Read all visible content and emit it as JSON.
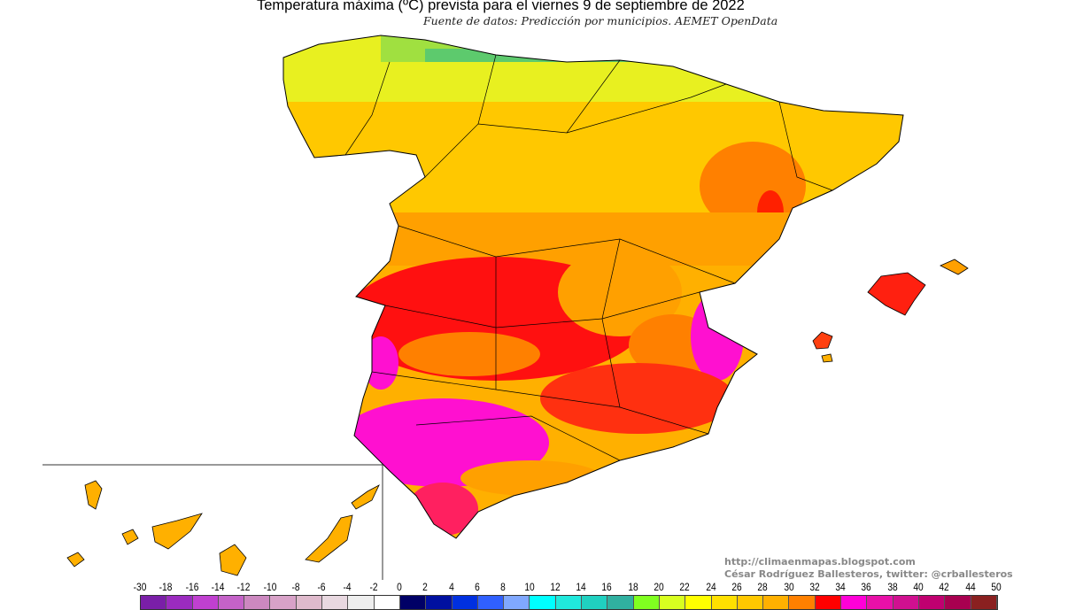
{
  "header": {
    "title": "Temperatura máxima (ºC) prevista para el viernes 9 de septiembre de 2022",
    "subtitle": "Fuente de datos: Predicción por municipios. AEMET OpenData"
  },
  "credits": {
    "url": "http://climaenmapas.blogspot.com",
    "author": "César Rodríguez Ballesteros, twitter: @crballesteros"
  },
  "legend": {
    "unit": "ºC",
    "labels": [
      "-30",
      "-18",
      "-16",
      "-14",
      "-12",
      "-10",
      "-8",
      "-6",
      "-4",
      "-2",
      "0",
      "2",
      "4",
      "6",
      "8",
      "10",
      "12",
      "14",
      "16",
      "18",
      "20",
      "22",
      "24",
      "26",
      "28",
      "30",
      "32",
      "34",
      "36",
      "38",
      "40",
      "42",
      "44",
      "50"
    ],
    "colors": [
      "#7a1fa8",
      "#9b2bc0",
      "#c040d0",
      "#c462c8",
      "#cc88c0",
      "#d8a2c8",
      "#dfbacc",
      "#e8d8e0",
      "#eeeeee",
      "#ffffff",
      "#000066",
      "#0010a0",
      "#0030e0",
      "#3060ff",
      "#80a8ff",
      "#00ffff",
      "#20e8dc",
      "#20d0c0",
      "#30b0a0",
      "#80ff20",
      "#d8ff20",
      "#ffff00",
      "#ffe000",
      "#ffc800",
      "#ffb000",
      "#ff8000",
      "#ff0000",
      "#ff00d8",
      "#e810a8",
      "#d01090",
      "#c00070",
      "#a80050",
      "#8a2020"
    ]
  },
  "map": {
    "region": "Spain",
    "colors": {
      "north": "#e8f020",
      "mid": "#ffc800",
      "orange": "#ffa000",
      "hot": "#ff1010",
      "hottest": "#ff10d0",
      "coast_green": "#40c080"
    }
  }
}
